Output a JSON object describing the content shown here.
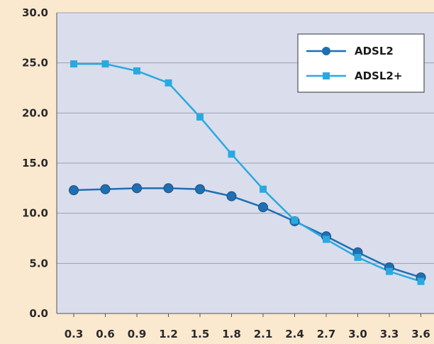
{
  "chart_data": {
    "type": "line",
    "x": [
      0.3,
      0.6,
      0.9,
      1.2,
      1.5,
      1.8,
      2.1,
      2.4,
      2.7,
      3.0,
      3.3,
      3.6
    ],
    "x_tick_labels": [
      "0.3",
      "0.6",
      "0.9",
      "1.2",
      "1.5",
      "1.8",
      "2.1",
      "2.4",
      "2.7",
      "3.0",
      "3.3",
      "3.6"
    ],
    "y_tick_labels": [
      "0.0",
      "5.0",
      "10.0",
      "15.0",
      "20.0",
      "25.0",
      "30.0"
    ],
    "ylim": [
      0,
      30
    ],
    "grid": "horizontal",
    "legend_position": "top-right",
    "series": [
      {
        "name": "ADSL2",
        "marker": "circle",
        "color": "#1f6fb2",
        "values": [
          12.3,
          12.4,
          12.5,
          12.5,
          12.4,
          11.7,
          10.6,
          9.2,
          7.7,
          6.1,
          4.6,
          3.6
        ]
      },
      {
        "name": "ADSL2+",
        "marker": "square",
        "color": "#2aa9e0",
        "values": [
          24.9,
          24.9,
          24.2,
          23.0,
          19.6,
          15.9,
          12.4,
          9.3,
          7.4,
          5.6,
          4.2,
          3.2
        ]
      }
    ]
  },
  "colors": {
    "background": "#fbe9cf",
    "plot_area": "#d9ddec",
    "grid": "#9aa0b2"
  }
}
